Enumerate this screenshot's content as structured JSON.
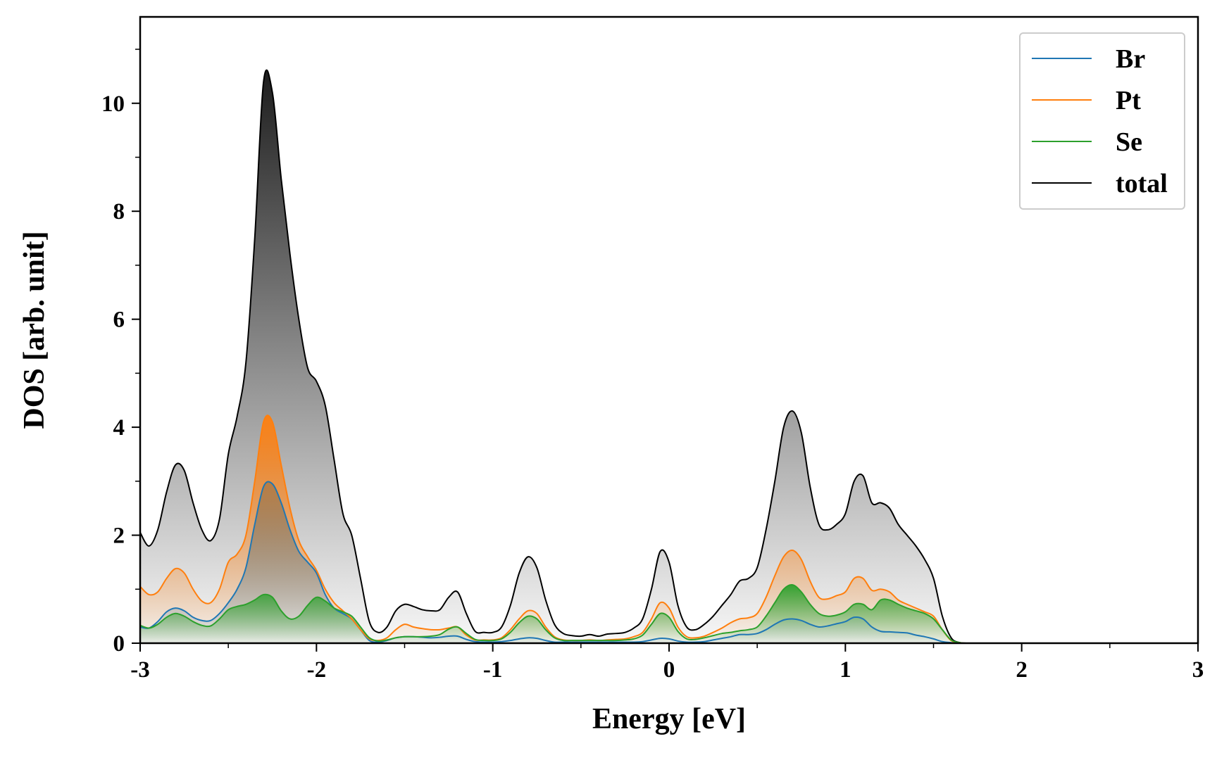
{
  "chart_data": {
    "type": "area",
    "xlabel": "Energy [eV]",
    "ylabel": "DOS [arb. unit]",
    "x": [
      -3.0,
      -2.95,
      -2.9,
      -2.85,
      -2.8,
      -2.75,
      -2.7,
      -2.65,
      -2.6,
      -2.55,
      -2.5,
      -2.45,
      -2.4,
      -2.35,
      -2.3,
      -2.25,
      -2.2,
      -2.15,
      -2.1,
      -2.05,
      -2.0,
      -1.95,
      -1.9,
      -1.85,
      -1.8,
      -1.75,
      -1.7,
      -1.65,
      -1.6,
      -1.55,
      -1.5,
      -1.45,
      -1.4,
      -1.35,
      -1.3,
      -1.25,
      -1.2,
      -1.15,
      -1.1,
      -1.05,
      -1.0,
      -0.95,
      -0.9,
      -0.85,
      -0.8,
      -0.75,
      -0.7,
      -0.65,
      -0.6,
      -0.55,
      -0.5,
      -0.45,
      -0.4,
      -0.35,
      -0.3,
      -0.25,
      -0.2,
      -0.15,
      -0.1,
      -0.05,
      0.0,
      0.05,
      0.1,
      0.15,
      0.2,
      0.25,
      0.3,
      0.35,
      0.4,
      0.45,
      0.5,
      0.55,
      0.6,
      0.65,
      0.7,
      0.75,
      0.8,
      0.85,
      0.9,
      0.95,
      1.0,
      1.05,
      1.1,
      1.15,
      1.2,
      1.25,
      1.3,
      1.35,
      1.4,
      1.45,
      1.5,
      1.55,
      1.6,
      1.65,
      1.7,
      2.0,
      2.5,
      3.0
    ],
    "series": [
      {
        "name": "Br",
        "color": "#1f77b4",
        "values": [
          0.3,
          0.28,
          0.4,
          0.58,
          0.65,
          0.6,
          0.48,
          0.42,
          0.42,
          0.55,
          0.75,
          1.0,
          1.4,
          2.2,
          2.9,
          2.95,
          2.6,
          2.1,
          1.7,
          1.5,
          1.3,
          0.9,
          0.65,
          0.55,
          0.45,
          0.25,
          0.05,
          0.02,
          0.05,
          0.1,
          0.12,
          0.12,
          0.11,
          0.1,
          0.11,
          0.13,
          0.13,
          0.07,
          0.03,
          0.02,
          0.02,
          0.03,
          0.05,
          0.08,
          0.1,
          0.09,
          0.05,
          0.02,
          0.02,
          0.02,
          0.02,
          0.02,
          0.02,
          0.02,
          0.02,
          0.02,
          0.02,
          0.03,
          0.06,
          0.09,
          0.08,
          0.04,
          0.02,
          0.02,
          0.03,
          0.06,
          0.09,
          0.12,
          0.16,
          0.16,
          0.18,
          0.25,
          0.35,
          0.43,
          0.45,
          0.42,
          0.35,
          0.3,
          0.32,
          0.36,
          0.4,
          0.48,
          0.45,
          0.3,
          0.22,
          0.21,
          0.2,
          0.19,
          0.15,
          0.12,
          0.08,
          0.03,
          0.01,
          0,
          0,
          0,
          0,
          0
        ]
      },
      {
        "name": "Pt",
        "color": "#ff7f0e",
        "values": [
          1.05,
          0.9,
          0.95,
          1.2,
          1.38,
          1.3,
          1.0,
          0.78,
          0.75,
          1.0,
          1.5,
          1.65,
          2.0,
          3.0,
          4.1,
          4.1,
          3.3,
          2.5,
          1.9,
          1.6,
          1.35,
          1.0,
          0.75,
          0.6,
          0.45,
          0.25,
          0.08,
          0.05,
          0.1,
          0.25,
          0.35,
          0.3,
          0.27,
          0.25,
          0.25,
          0.28,
          0.3,
          0.15,
          0.06,
          0.06,
          0.06,
          0.1,
          0.25,
          0.45,
          0.6,
          0.55,
          0.3,
          0.12,
          0.06,
          0.05,
          0.05,
          0.06,
          0.05,
          0.06,
          0.07,
          0.08,
          0.12,
          0.2,
          0.45,
          0.75,
          0.65,
          0.3,
          0.12,
          0.1,
          0.13,
          0.2,
          0.28,
          0.38,
          0.45,
          0.47,
          0.55,
          0.85,
          1.25,
          1.6,
          1.72,
          1.55,
          1.15,
          0.85,
          0.82,
          0.88,
          0.95,
          1.2,
          1.2,
          0.98,
          1.0,
          0.95,
          0.8,
          0.72,
          0.65,
          0.58,
          0.5,
          0.25,
          0.05,
          0.01,
          0,
          0,
          0,
          0
        ]
      },
      {
        "name": "Se",
        "color": "#2ca02c",
        "values": [
          0.33,
          0.28,
          0.35,
          0.48,
          0.55,
          0.5,
          0.4,
          0.33,
          0.32,
          0.45,
          0.62,
          0.68,
          0.72,
          0.8,
          0.9,
          0.85,
          0.6,
          0.45,
          0.5,
          0.7,
          0.85,
          0.78,
          0.65,
          0.58,
          0.5,
          0.3,
          0.1,
          0.04,
          0.06,
          0.1,
          0.12,
          0.12,
          0.12,
          0.13,
          0.16,
          0.26,
          0.3,
          0.18,
          0.07,
          0.05,
          0.05,
          0.08,
          0.2,
          0.38,
          0.5,
          0.45,
          0.25,
          0.1,
          0.05,
          0.05,
          0.05,
          0.05,
          0.05,
          0.05,
          0.05,
          0.06,
          0.08,
          0.15,
          0.35,
          0.55,
          0.48,
          0.22,
          0.08,
          0.07,
          0.1,
          0.14,
          0.18,
          0.2,
          0.23,
          0.25,
          0.3,
          0.5,
          0.75,
          1.0,
          1.08,
          0.95,
          0.72,
          0.55,
          0.5,
          0.52,
          0.58,
          0.72,
          0.72,
          0.62,
          0.8,
          0.8,
          0.72,
          0.65,
          0.6,
          0.55,
          0.45,
          0.25,
          0.06,
          0.01,
          0,
          0,
          0,
          0
        ]
      },
      {
        "name": "total",
        "color": "#000000",
        "values": [
          2.05,
          1.8,
          2.1,
          2.8,
          3.3,
          3.2,
          2.6,
          2.1,
          1.9,
          2.3,
          3.5,
          4.2,
          5.2,
          7.5,
          10.4,
          10.2,
          8.6,
          7.2,
          6.0,
          5.1,
          4.85,
          4.4,
          3.4,
          2.4,
          2.0,
          1.2,
          0.4,
          0.2,
          0.3,
          0.6,
          0.72,
          0.68,
          0.62,
          0.6,
          0.62,
          0.85,
          0.95,
          0.55,
          0.22,
          0.2,
          0.2,
          0.3,
          0.7,
          1.3,
          1.6,
          1.4,
          0.8,
          0.35,
          0.18,
          0.14,
          0.13,
          0.16,
          0.13,
          0.17,
          0.18,
          0.2,
          0.28,
          0.45,
          1.0,
          1.7,
          1.5,
          0.7,
          0.3,
          0.25,
          0.35,
          0.5,
          0.7,
          0.9,
          1.15,
          1.2,
          1.4,
          2.1,
          3.0,
          4.0,
          4.3,
          3.9,
          2.9,
          2.2,
          2.1,
          2.2,
          2.4,
          3.0,
          3.1,
          2.6,
          2.6,
          2.5,
          2.2,
          2.0,
          1.8,
          1.55,
          1.2,
          0.5,
          0.1,
          0.01,
          0,
          0,
          0,
          0
        ]
      }
    ],
    "xlim": [
      -3,
      3
    ],
    "xticks": [
      -3,
      -2,
      -1,
      0,
      1,
      2,
      3
    ],
    "xminorticks": [
      -2.5,
      -1.5,
      -0.5,
      0.5,
      1.5,
      2.5
    ],
    "ylim": [
      0,
      11.6
    ],
    "yticks": [
      0,
      2,
      4,
      6,
      8,
      10
    ],
    "yminorticks": [
      1,
      3,
      5,
      7,
      9,
      11
    ],
    "fill_gradient": true,
    "legend": "upper right"
  }
}
